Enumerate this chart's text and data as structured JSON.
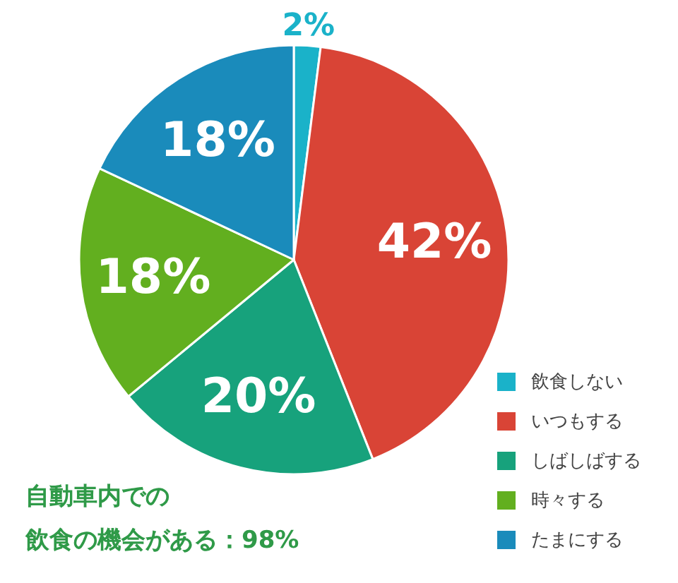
{
  "chart_data": {
    "type": "pie",
    "categories": [
      "飲食しない",
      "いつもする",
      "しばしばする",
      "時々する",
      "たまにする"
    ],
    "values": [
      2,
      42,
      20,
      18,
      18
    ],
    "colors": [
      "#1ab2c9",
      "#d94436",
      "#17a27c",
      "#62af1f",
      "#1a8bbb"
    ],
    "value_labels": [
      "2%",
      "42%",
      "20%",
      "18%",
      "18%"
    ],
    "legend": "bottom right",
    "annotations": [
      "自動車内での",
      "飲食の機会がある：98%"
    ]
  }
}
